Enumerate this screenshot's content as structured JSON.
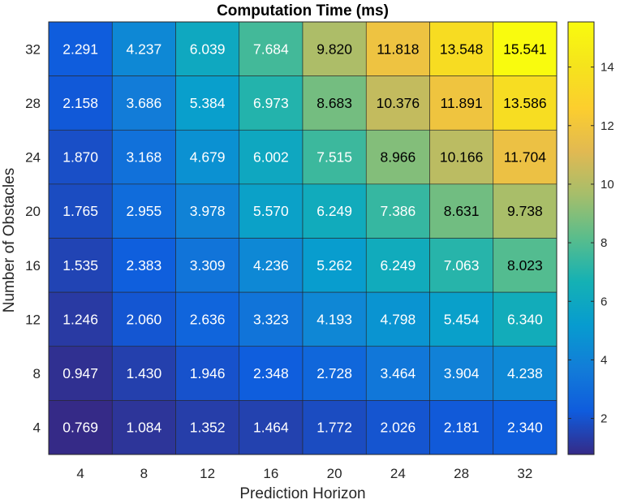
{
  "chart_data": {
    "type": "heatmap",
    "title": "Computation Time (ms)",
    "xlabel": "Prediction Horizon",
    "ylabel": "Number of Obstacles",
    "x": [
      "4",
      "8",
      "12",
      "16",
      "20",
      "24",
      "28",
      "32"
    ],
    "y": [
      "32",
      "28",
      "24",
      "20",
      "16",
      "12",
      "8",
      "4"
    ],
    "values": [
      [
        2.291,
        4.237,
        6.039,
        7.684,
        9.82,
        11.818,
        13.548,
        15.541
      ],
      [
        2.158,
        3.686,
        5.384,
        6.973,
        8.683,
        10.376,
        11.891,
        13.586
      ],
      [
        1.87,
        3.168,
        4.679,
        6.002,
        7.515,
        8.966,
        10.166,
        11.704
      ],
      [
        1.765,
        2.955,
        3.978,
        5.57,
        6.249,
        7.386,
        8.631,
        9.738
      ],
      [
        1.535,
        2.383,
        3.309,
        4.236,
        5.262,
        6.249,
        7.063,
        8.023
      ],
      [
        1.246,
        2.06,
        2.636,
        3.323,
        4.193,
        4.798,
        5.454,
        6.34
      ],
      [
        0.947,
        1.43,
        1.946,
        2.348,
        2.728,
        3.464,
        3.904,
        4.238
      ],
      [
        0.769,
        1.084,
        1.352,
        1.464,
        1.772,
        2.026,
        2.181,
        2.34
      ]
    ],
    "colorbar": {
      "colormap": "parula",
      "range": [
        0.769,
        15.541
      ],
      "ticks": [
        "2",
        "4",
        "6",
        "8",
        "10",
        "12",
        "14"
      ]
    },
    "grid": false
  }
}
